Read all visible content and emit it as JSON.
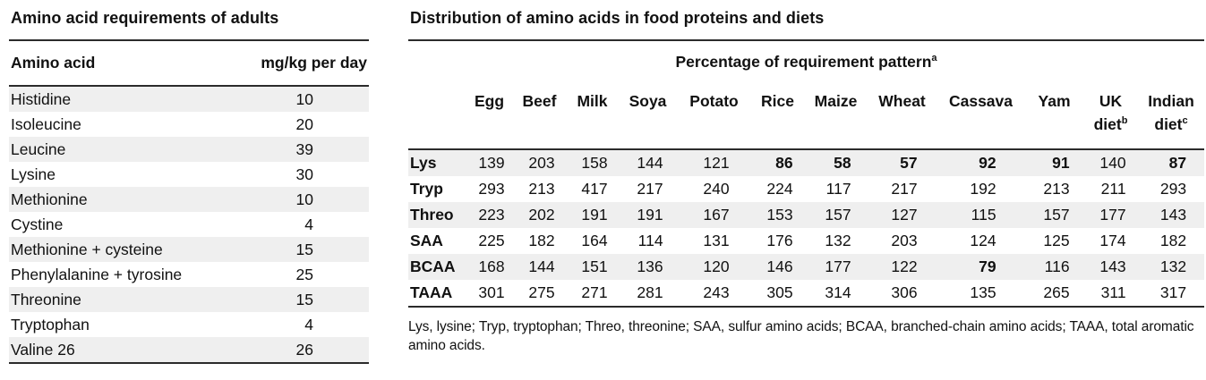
{
  "left_table": {
    "title": "Amino acid requirements of adults",
    "headers": {
      "name": "Amino acid",
      "value": "mg/kg per day"
    },
    "rows": [
      {
        "name": "Histidine",
        "value": "10"
      },
      {
        "name": "Isoleucine",
        "value": "20"
      },
      {
        "name": "Leucine",
        "value": "39"
      },
      {
        "name": "Lysine",
        "value": "30"
      },
      {
        "name": "Methionine",
        "value": "10"
      },
      {
        "name": "Cystine",
        "value": "4"
      },
      {
        "name": "Methionine + cysteine",
        "value": "15"
      },
      {
        "name": "Phenylalanine + tyrosine",
        "value": "25"
      },
      {
        "name": "Threonine",
        "value": "15"
      },
      {
        "name": "Tryptophan",
        "value": "4"
      },
      {
        "name": "Valine 26",
        "value": "26"
      }
    ]
  },
  "right_table": {
    "title": "Distribution of amino acids in food proteins and diets",
    "span_header": {
      "text": "Percentage of requirement pattern",
      "sup": "a"
    },
    "columns": [
      {
        "label": "Egg"
      },
      {
        "label": "Beef"
      },
      {
        "label": "Milk"
      },
      {
        "label": "Soya"
      },
      {
        "label": "Potato"
      },
      {
        "label": "Rice"
      },
      {
        "label": "Maize"
      },
      {
        "label": "Wheat"
      },
      {
        "label": "Cassava"
      },
      {
        "label": "Yam"
      },
      {
        "label": "UK",
        "label2": "diet",
        "sup": "b"
      },
      {
        "label": "Indian",
        "label2": "diet",
        "sup": "c"
      }
    ],
    "rows": [
      {
        "label": "Lys",
        "cells": [
          {
            "v": "139"
          },
          {
            "v": "203"
          },
          {
            "v": "158"
          },
          {
            "v": "144"
          },
          {
            "v": "121"
          },
          {
            "v": "86",
            "bold": true
          },
          {
            "v": "58",
            "bold": true
          },
          {
            "v": "57",
            "bold": true
          },
          {
            "v": "92",
            "bold": true
          },
          {
            "v": "91",
            "bold": true
          },
          {
            "v": "140"
          },
          {
            "v": "87",
            "bold": true
          }
        ]
      },
      {
        "label": "Tryp",
        "cells": [
          {
            "v": "293"
          },
          {
            "v": "213"
          },
          {
            "v": "417"
          },
          {
            "v": "217"
          },
          {
            "v": "240"
          },
          {
            "v": "224"
          },
          {
            "v": "117"
          },
          {
            "v": "217"
          },
          {
            "v": "192"
          },
          {
            "v": "213"
          },
          {
            "v": "211"
          },
          {
            "v": "293"
          }
        ]
      },
      {
        "label": "Threo",
        "cells": [
          {
            "v": "223"
          },
          {
            "v": "202"
          },
          {
            "v": "191"
          },
          {
            "v": "191"
          },
          {
            "v": "167"
          },
          {
            "v": "153"
          },
          {
            "v": "157"
          },
          {
            "v": "127"
          },
          {
            "v": "115"
          },
          {
            "v": "157"
          },
          {
            "v": "177"
          },
          {
            "v": "143"
          }
        ]
      },
      {
        "label": "SAA",
        "cells": [
          {
            "v": "225"
          },
          {
            "v": "182"
          },
          {
            "v": "164"
          },
          {
            "v": "114"
          },
          {
            "v": "131"
          },
          {
            "v": "176"
          },
          {
            "v": "132"
          },
          {
            "v": "203"
          },
          {
            "v": "124"
          },
          {
            "v": "125"
          },
          {
            "v": "174"
          },
          {
            "v": "182"
          }
        ]
      },
      {
        "label": "BCAA",
        "cells": [
          {
            "v": "168"
          },
          {
            "v": "144"
          },
          {
            "v": "151"
          },
          {
            "v": "136"
          },
          {
            "v": "120"
          },
          {
            "v": "146"
          },
          {
            "v": "177"
          },
          {
            "v": "122"
          },
          {
            "v": "79",
            "bold": true
          },
          {
            "v": "116"
          },
          {
            "v": "143"
          },
          {
            "v": "132"
          }
        ]
      },
      {
        "label": "TAAA",
        "cells": [
          {
            "v": "301"
          },
          {
            "v": "275"
          },
          {
            "v": "271"
          },
          {
            "v": "281"
          },
          {
            "v": "243"
          },
          {
            "v": "305"
          },
          {
            "v": "314"
          },
          {
            "v": "306"
          },
          {
            "v": "135"
          },
          {
            "v": "265"
          },
          {
            "v": "311"
          },
          {
            "v": "317"
          }
        ]
      }
    ],
    "footnote": "Lys, lysine; Tryp, tryptophan; Threo, threonine; SAA, sulfur amino acids; BCAA, branched-chain amino acids; TAAA, total aromatic amino acids."
  },
  "colors": {
    "stripe": "#efefef",
    "rule": "#2b2b2b",
    "text": "#111111",
    "background": "#ffffff"
  }
}
